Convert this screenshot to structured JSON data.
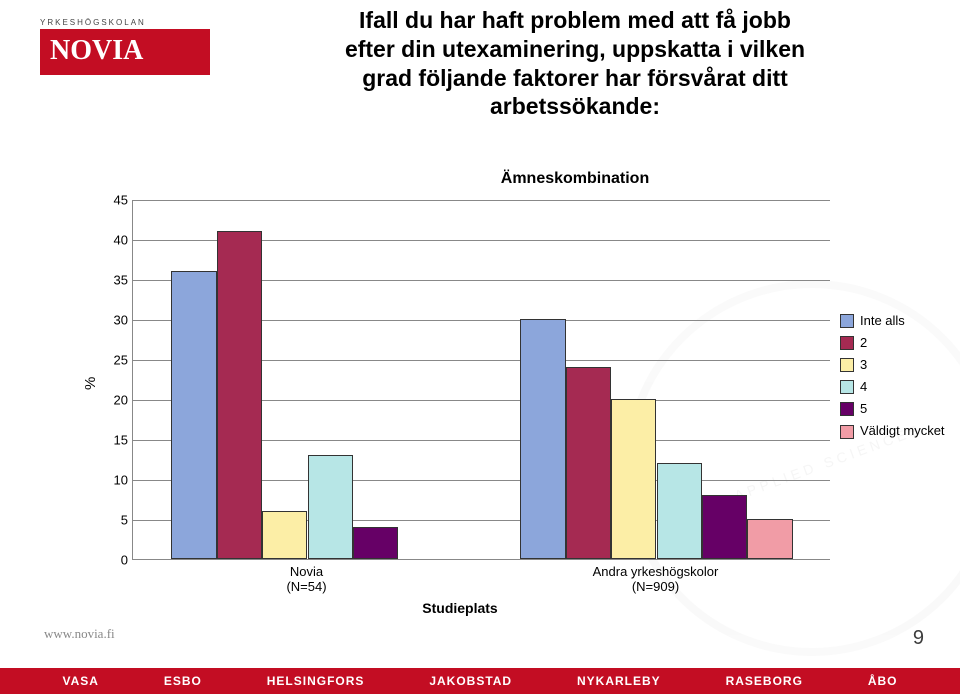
{
  "logo": {
    "topline": "YRKESHÖGSKOLAN",
    "name": "NOVIA"
  },
  "title_lines": [
    "Ifall du har haft problem med att få jobb",
    "efter din utexaminering, uppskatta i vilken",
    "grad följande faktorer har försvårat ditt",
    "arbetssökande:"
  ],
  "subtitle": "Ämneskombination",
  "chart": {
    "type": "bar",
    "y_axis_title": "%",
    "x_axis_title": "Studieplats",
    "ylim": [
      0,
      45
    ],
    "ytick_step": 5,
    "categories": [
      {
        "label": "Novia",
        "sublabel": "(N=54)"
      },
      {
        "label": "Andra yrkeshögskolor",
        "sublabel": "(N=909)"
      }
    ],
    "series": [
      {
        "name": "Inte alls",
        "color": "#8ca6db",
        "values": [
          36,
          30
        ]
      },
      {
        "name": "2",
        "color": "#a52a52",
        "values": [
          41,
          24
        ]
      },
      {
        "name": "3",
        "color": "#fceea6",
        "values": [
          6,
          20
        ]
      },
      {
        "name": "4",
        "color": "#b7e6e6",
        "values": [
          13,
          12
        ]
      },
      {
        "name": "5",
        "color": "#660066",
        "values": [
          4,
          8
        ]
      },
      {
        "name": "Väldigt mycket",
        "color": "#f19ca6",
        "values": [
          0,
          5
        ]
      }
    ],
    "axis_color": "#888888",
    "text_color": "#000000"
  },
  "legend_title": null,
  "footer_url": "www.novia.fi",
  "page_number": "9",
  "footer_cities": [
    "VASA",
    "ESBO",
    "HELSINGFORS",
    "JAKOBSTAD",
    "NYKARLEBY",
    "RASEBORG",
    "ÅBO"
  ]
}
